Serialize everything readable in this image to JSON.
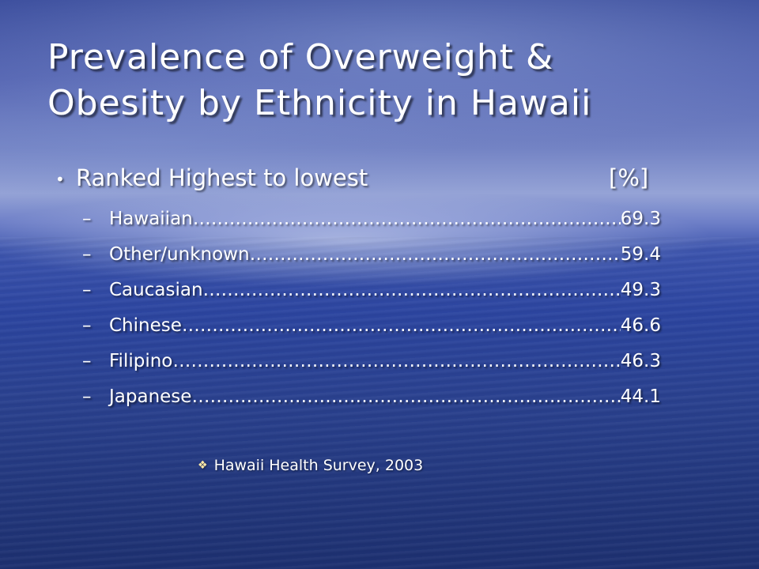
{
  "slide": {
    "title_line1": "Prevalence of Overweight &",
    "title_line2": "Obesity by Ethnicity in Hawaii",
    "bullet": {
      "text": "Ranked Highest to lowest",
      "unit": "[%]"
    },
    "items": [
      {
        "label": "Hawaiian",
        "value": "69.3"
      },
      {
        "label": "Other/unknown",
        "value": "59.4"
      },
      {
        "label": "Caucasian",
        "value": "49.3"
      },
      {
        "label": "Chinese",
        "value": "46.6"
      },
      {
        "label": "Filipino",
        "value": "46.3"
      },
      {
        "label": "Japanese",
        "value": "44.1"
      }
    ],
    "source": "Hawaii Health Survey, 2003"
  },
  "colors": {
    "text": "#ffffff",
    "background_top": "#3d4f9e",
    "background_bottom": "#1d3070",
    "source_marker": "#ffe9a8"
  },
  "icons": {
    "bullet": "round-bullet-icon",
    "dash": "dash-icon",
    "source_marker": "diamond-bullet-icon"
  }
}
